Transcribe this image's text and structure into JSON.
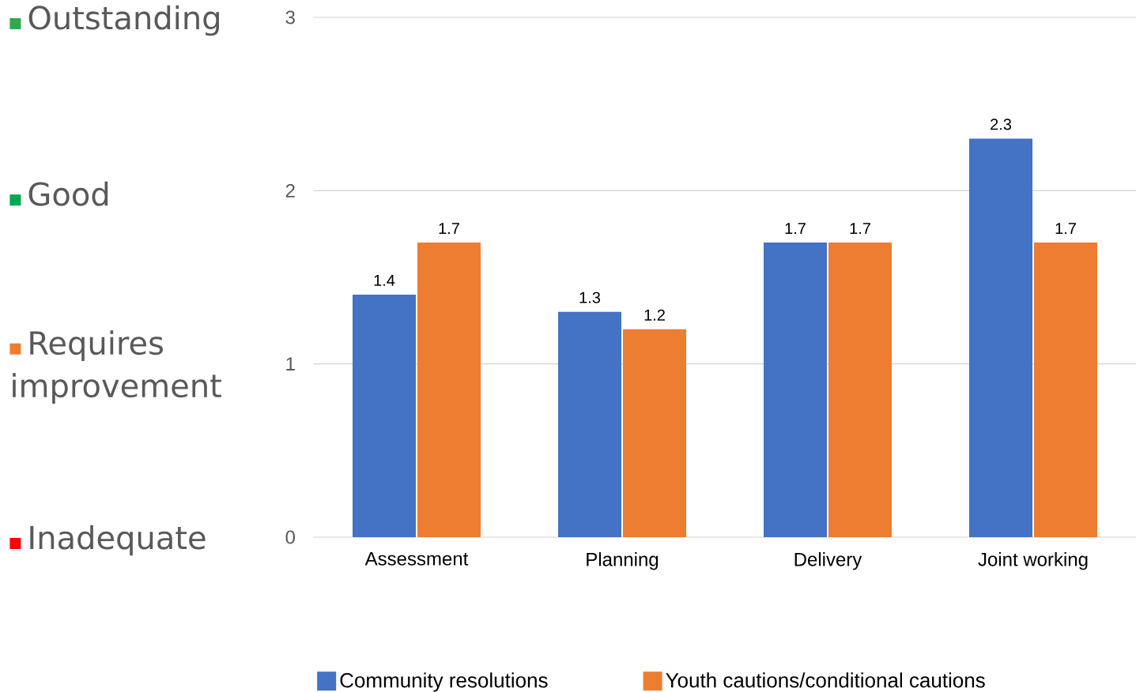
{
  "chart_data": {
    "type": "bar",
    "categories": [
      "Assessment",
      "Planning",
      "Delivery",
      "Joint working"
    ],
    "series": [
      {
        "name": "Community resolutions",
        "color": "#4472c4",
        "values": [
          1.4,
          1.3,
          1.7,
          2.3
        ]
      },
      {
        "name": "Youth cautions/conditional cautions",
        "color": "#ed7d31",
        "values": [
          1.7,
          1.2,
          1.7,
          1.7
        ]
      }
    ],
    "ylim": [
      0,
      3
    ],
    "yticks": [
      0,
      1,
      2,
      3
    ],
    "annotations": [
      "Inadequate",
      "Requires improvement",
      "Good",
      "Outstanding"
    ],
    "grid": "y",
    "legend": "bottom",
    "data_labels": true
  }
}
